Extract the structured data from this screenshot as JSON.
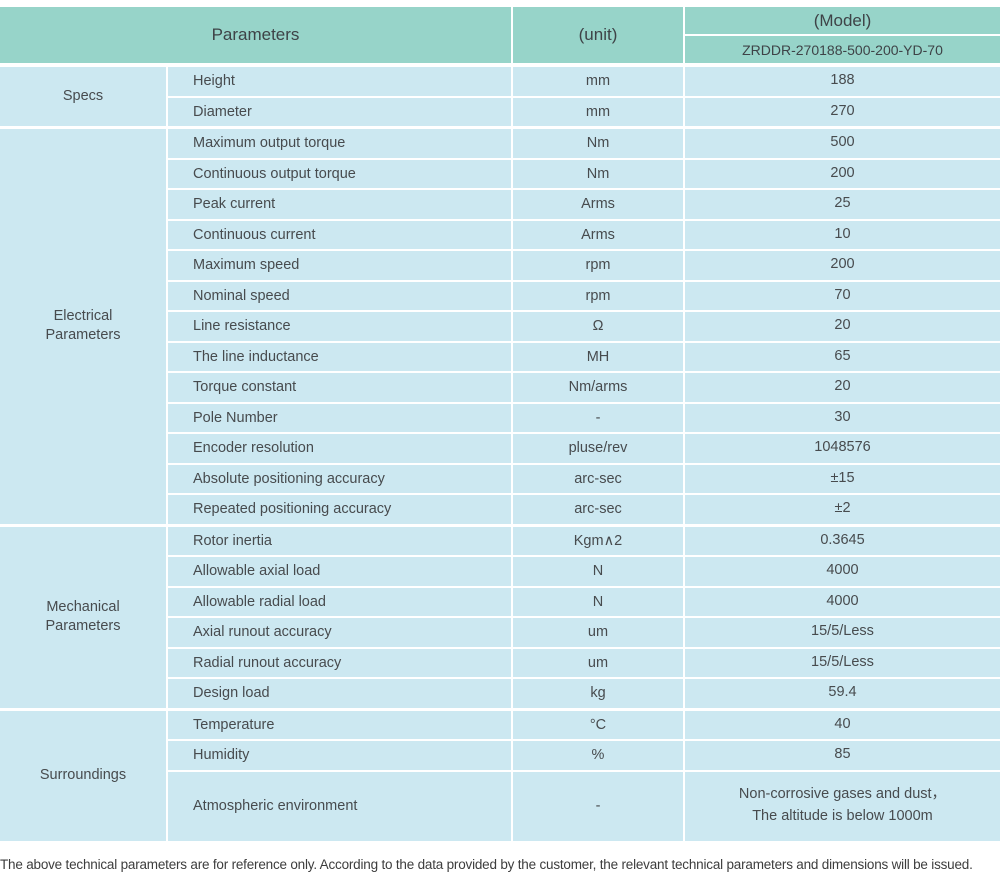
{
  "header": {
    "parameters_label": "Parameters",
    "unit_label": "(unit)",
    "model_label": "(Model)",
    "model_value": "ZRDDR-270188-500-200-YD-70"
  },
  "sections": [
    {
      "group": "Specs",
      "rows": [
        {
          "param": "Height",
          "unit": "mm",
          "value": "188"
        },
        {
          "param": "Diameter",
          "unit": "mm",
          "value": "270"
        }
      ]
    },
    {
      "group": "Electrical Parameters",
      "rows": [
        {
          "param": "Maximum output torque",
          "unit": "Nm",
          "value": "500"
        },
        {
          "param": "Continuous output torque",
          "unit": "Nm",
          "value": "200"
        },
        {
          "param": "Peak current",
          "unit": "Arms",
          "value": "25"
        },
        {
          "param": "Continuous current",
          "unit": "Arms",
          "value": "10"
        },
        {
          "param": "Maximum speed",
          "unit": "rpm",
          "value": "200"
        },
        {
          "param": "Nominal speed",
          "unit": "rpm",
          "value": "70"
        },
        {
          "param": "Line resistance",
          "unit": "Ω",
          "value": "20"
        },
        {
          "param": "The line inductance",
          "unit": "MH",
          "value": "65"
        },
        {
          "param": "Torque constant",
          "unit": "Nm/arms",
          "value": "20"
        },
        {
          "param": "Pole Number",
          "unit": "-",
          "value": "30"
        },
        {
          "param": "Encoder resolution",
          "unit": "pluse/rev",
          "value": "1048576"
        },
        {
          "param": "Absolute positioning accuracy",
          "unit": "arc-sec",
          "value": "±15"
        },
        {
          "param": "Repeated positioning accuracy",
          "unit": "arc-sec",
          "value": "±2"
        }
      ]
    },
    {
      "group": "Mechanical Parameters",
      "rows": [
        {
          "param": "Rotor inertia",
          "unit": "Kgm∧2",
          "value": "0.3645"
        },
        {
          "param": "Allowable axial load",
          "unit": "N",
          "value": "4000"
        },
        {
          "param": "Allowable radial load",
          "unit": "N",
          "value": "4000"
        },
        {
          "param": "Axial runout accuracy",
          "unit": "um",
          "value": "15/5/Less"
        },
        {
          "param": "Radial runout accuracy",
          "unit": "um",
          "value": "15/5/Less"
        },
        {
          "param": "Design load",
          "unit": "kg",
          "value": "59.4"
        }
      ]
    },
    {
      "group": "Surroundings",
      "rows": [
        {
          "param": "Temperature",
          "unit": "°C",
          "value": "40"
        },
        {
          "param": "Humidity",
          "unit": "%",
          "value": "85"
        },
        {
          "param": "Atmospheric environment",
          "unit": "-",
          "value": "Non-corrosive gases and dust，\nThe altitude is below 1000m"
        }
      ]
    }
  ],
  "footer": {
    "note": "The above technical parameters are for reference only. According to the data provided by the customer, the relevant technical parameters and dimensions will be issued."
  },
  "colors": {
    "header_bg": "#97d4c9",
    "row_bg": "#cce8f1",
    "text": "#474b4e",
    "header_text": "#3e4347",
    "footer_text": "#3d3d3d"
  }
}
